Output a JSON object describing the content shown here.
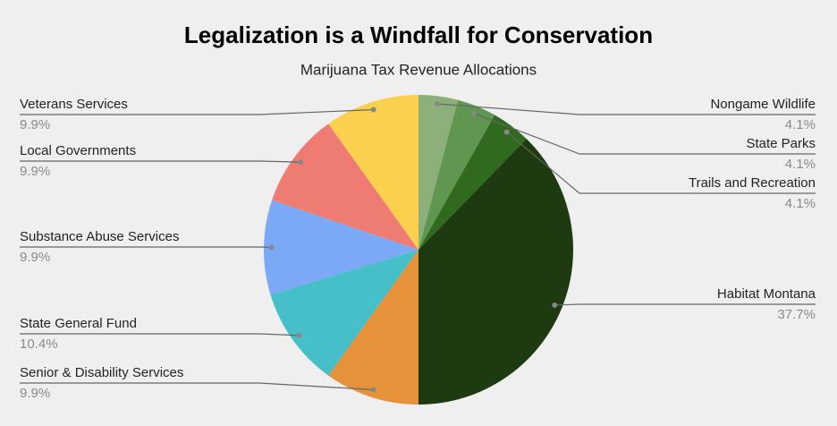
{
  "chart_data": {
    "type": "pie",
    "title": "Legalization is a Windfall for Conservation",
    "subtitle": "Marijuana Tax Revenue Allocations",
    "categories": [
      "Nongame Wildlife",
      "State Parks",
      "Trails and Recreation",
      "Habitat Montana",
      "Senior & Disability Services",
      "State General Fund",
      "Substance Abuse Services",
      "Local Governments",
      "Veterans Services"
    ],
    "values": [
      4.1,
      4.1,
      4.1,
      37.7,
      9.9,
      10.4,
      9.9,
      9.9,
      9.9
    ],
    "value_labels": [
      "4.1%",
      "4.1%",
      "4.1%",
      "37.7%",
      "9.9%",
      "10.4%",
      "9.9%",
      "9.9%",
      "9.9%"
    ],
    "colors": [
      "#8db07a",
      "#5f9650",
      "#2f6a1e",
      "#1e3a10",
      "#e5923a",
      "#46bfc9",
      "#7ba9f5",
      "#ef7c72",
      "#fbd04e"
    ]
  }
}
